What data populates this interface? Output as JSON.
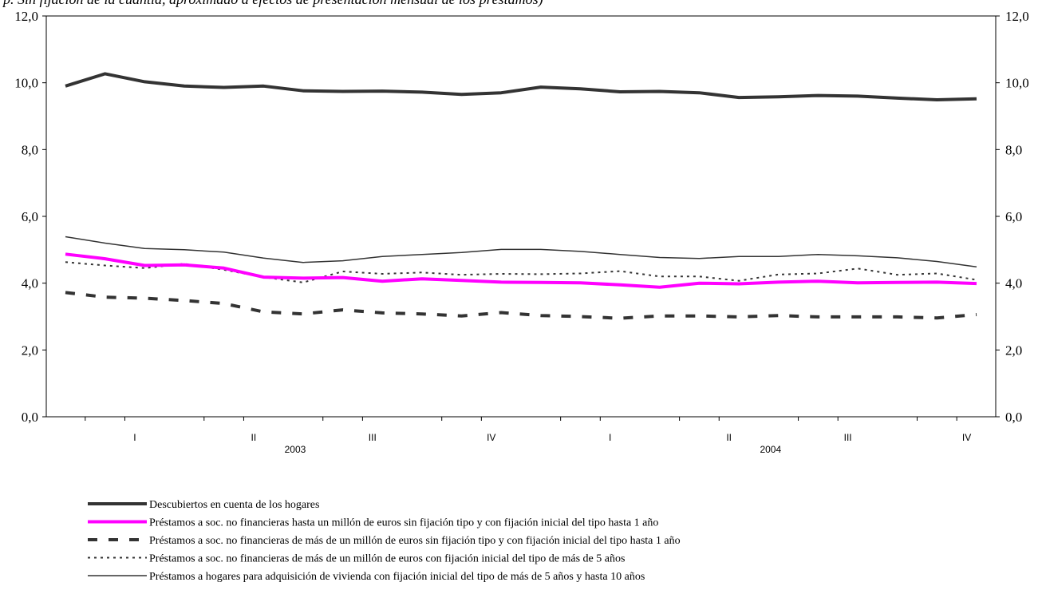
{
  "chart_data": {
    "type": "line",
    "title": "p. Sin fijación de la cuantía, aproximado a efectos de presentación mensual de los préstamos)",
    "y_ticks": [
      "0,0",
      "2,0",
      "4,0",
      "6,0",
      "8,0",
      "10,0",
      "12,0"
    ],
    "ylim": [
      0,
      12
    ],
    "x_quarter_labels": [
      "I",
      "II",
      "III",
      "IV",
      "I",
      "II",
      "III",
      "IV"
    ],
    "x_year_labels": [
      "2003",
      "2004"
    ],
    "months": [
      "2003-01",
      "2003-02",
      "2003-03",
      "2003-04",
      "2003-05",
      "2003-06",
      "2003-07",
      "2003-08",
      "2003-09",
      "2003-10",
      "2003-11",
      "2003-12",
      "2004-01",
      "2004-02",
      "2004-03",
      "2004-04",
      "2004-05",
      "2004-06",
      "2004-07",
      "2004-08",
      "2004-09",
      "2004-10",
      "2004-11",
      "2004-12"
    ],
    "series": [
      {
        "name": "Descubiertos en cuenta de los hogares",
        "color": "#333333",
        "style": "thick-solid",
        "values": [
          9.9,
          10.27,
          10.03,
          9.9,
          9.86,
          9.9,
          9.76,
          9.74,
          9.75,
          9.72,
          9.65,
          9.7,
          9.87,
          9.82,
          9.73,
          9.74,
          9.7,
          9.56,
          9.58,
          9.62,
          9.6,
          9.54,
          9.49,
          9.52
        ]
      },
      {
        "name": "Préstamos a soc. no financieras hasta un millón de euros sin fijación tipo y con fijación inicial del tipo hasta 1 año",
        "color": "#ff00ff",
        "style": "thick-solid",
        "values": [
          4.87,
          4.73,
          4.53,
          4.55,
          4.45,
          4.18,
          4.15,
          4.17,
          4.06,
          4.13,
          4.08,
          4.03,
          4.02,
          4.01,
          3.95,
          3.88,
          4.0,
          3.98,
          4.03,
          4.06,
          4.01,
          4.02,
          4.03,
          3.99
        ]
      },
      {
        "name": "Préstamos a soc. no financieras de más de un millón de euros sin fijación tipo y con fijación inicial del tipo hasta 1 año",
        "color": "#333333",
        "style": "thick-dash",
        "values": [
          3.72,
          3.58,
          3.55,
          3.48,
          3.39,
          3.14,
          3.08,
          3.2,
          3.11,
          3.08,
          3.02,
          3.12,
          3.03,
          3.0,
          2.95,
          3.02,
          3.02,
          2.99,
          3.03,
          2.99,
          2.99,
          2.99,
          2.96,
          3.06
        ]
      },
      {
        "name": "Préstamos a soc. no financieras de más de un millón de euros con fijación inicial del tipo de más de 5 años",
        "color": "#333333",
        "style": "dotted",
        "values": [
          4.63,
          4.53,
          4.45,
          4.58,
          4.4,
          4.18,
          4.02,
          4.35,
          4.28,
          4.32,
          4.25,
          4.28,
          4.27,
          4.29,
          4.36,
          4.2,
          4.2,
          4.07,
          4.26,
          4.29,
          4.44,
          4.25,
          4.29,
          4.1
        ]
      },
      {
        "name": "Préstamos a hogares para adquisición de vivienda con fijación inicial del tipo de más de 5 años y hasta 10 años",
        "color": "#333333",
        "style": "thin-solid",
        "values": [
          5.39,
          5.2,
          5.04,
          5.0,
          4.93,
          4.75,
          4.62,
          4.67,
          4.8,
          4.86,
          4.92,
          5.01,
          5.01,
          4.95,
          4.86,
          4.77,
          4.74,
          4.8,
          4.8,
          4.86,
          4.82,
          4.76,
          4.65,
          4.49
        ]
      }
    ],
    "grid": false,
    "legend_position": "bottom-left"
  }
}
